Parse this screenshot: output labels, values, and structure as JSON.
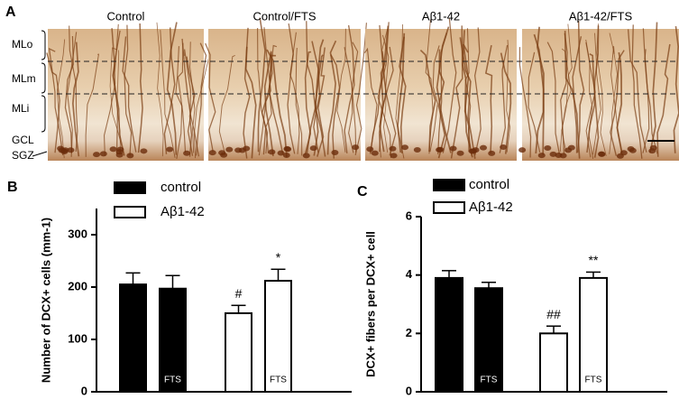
{
  "figure": {
    "panel_label": "A",
    "columns": [
      "Control",
      "Control/FTS",
      "Aβ1-42",
      "Aβ1-42/FTS"
    ],
    "rows": [
      "MLo",
      "MLm",
      "MLi",
      "GCL",
      "SGZ"
    ]
  },
  "chart_data": [
    {
      "type": "bar",
      "panel_label": "B",
      "ylabel": "Number of DCX+ cells (mm-1)",
      "categories": [
        null,
        "FTS",
        null,
        "FTS"
      ],
      "series": [
        {
          "name": "control",
          "color": "#000000",
          "values": [
            205,
            197,
            null,
            null
          ],
          "errors": [
            22,
            25,
            null,
            null
          ]
        },
        {
          "name": "Aβ1-42",
          "color": "#ffffff",
          "values": [
            null,
            null,
            150,
            212
          ],
          "errors": [
            null,
            null,
            15,
            22
          ]
        }
      ],
      "value_annotations": [
        null,
        null,
        "#",
        "*"
      ],
      "ylim": [
        0,
        350
      ],
      "yticks": [
        0,
        100,
        200,
        300
      ]
    },
    {
      "type": "bar",
      "panel_label": "C",
      "ylabel": "DCX+ fibers per DCX+ cell",
      "categories": [
        null,
        "FTS",
        null,
        "FTS"
      ],
      "series": [
        {
          "name": "control",
          "color": "#000000",
          "values": [
            3.9,
            3.55,
            null,
            null
          ],
          "errors": [
            0.25,
            0.2,
            null,
            null
          ]
        },
        {
          "name": "Aβ1-42",
          "color": "#ffffff",
          "values": [
            null,
            null,
            2.0,
            3.9
          ],
          "errors": [
            null,
            null,
            0.25,
            0.2
          ]
        }
      ],
      "value_annotations": [
        null,
        null,
        "##",
        "**"
      ],
      "ylim": [
        0,
        6
      ],
      "yticks": [
        0,
        2,
        4,
        6
      ]
    }
  ]
}
